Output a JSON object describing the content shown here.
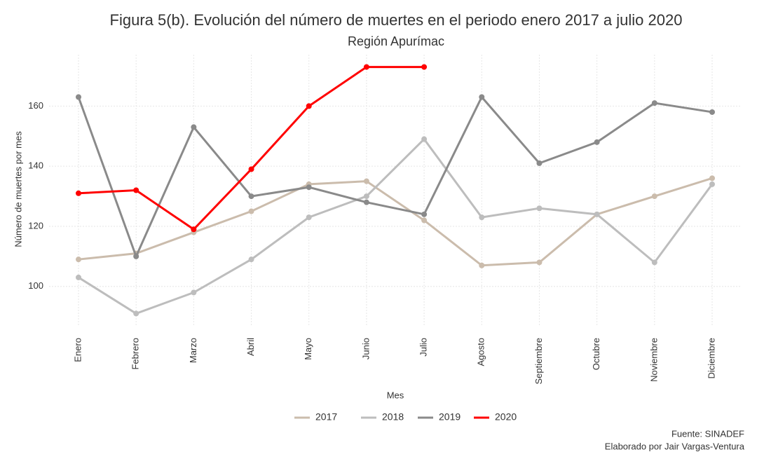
{
  "chart_data": {
    "type": "line",
    "title": "Figura 5(b). Evolución del número de muertes en el periodo enero 2017 a julio 2020",
    "subtitle": "Región Apurímac",
    "x_label": "Mes",
    "y_label": "Número de muertes por mes",
    "caption": [
      "Fuente: SINADEF",
      "Elaborado por Jair Vargas-Ventura"
    ],
    "categories": [
      "Enero",
      "Febrero",
      "Marzo",
      "Abril",
      "Mayo",
      "Junio",
      "Julio",
      "Agosto",
      "Septiembre",
      "Octubre",
      "Noviembre",
      "Diciembre"
    ],
    "series": [
      {
        "name": "2017",
        "color": "#cbbcac",
        "values": [
          109,
          111,
          118,
          125,
          134,
          135,
          122,
          107,
          108,
          124,
          130,
          136
        ]
      },
      {
        "name": "2018",
        "color": "#bdbdbd",
        "values": [
          103,
          91,
          98,
          109,
          123,
          130,
          149,
          123,
          126,
          124,
          108,
          134
        ]
      },
      {
        "name": "2019",
        "color": "#8a8a8a",
        "values": [
          163,
          110,
          153,
          130,
          133,
          128,
          124,
          163,
          141,
          148,
          161,
          158
        ]
      },
      {
        "name": "2020",
        "color": "#ff0000",
        "values": [
          131,
          132,
          119,
          139,
          160,
          173,
          173,
          null,
          null,
          null,
          null,
          null
        ]
      }
    ],
    "ylim": [
      86.9,
      177.1
    ],
    "yticks": [
      100,
      120,
      140,
      160
    ],
    "grid": true,
    "legend": "bottom"
  }
}
